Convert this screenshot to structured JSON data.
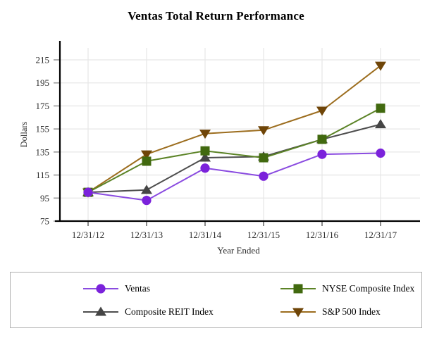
{
  "title": "Ventas Total Return Performance",
  "chart_data": {
    "type": "line",
    "title": "Ventas Total Return Performance",
    "xlabel": "Year Ended",
    "ylabel": "Dollars",
    "categories": [
      "12/31/12",
      "12/31/13",
      "12/31/14",
      "12/31/15",
      "12/31/16",
      "12/31/17"
    ],
    "yticks": [
      75,
      95,
      115,
      135,
      155,
      175,
      195,
      215
    ],
    "ylim": [
      75,
      225
    ],
    "grid": true,
    "legend_position": "bottom-box",
    "series": [
      {
        "name": "S&P 500 Index",
        "marker": "triangle-down",
        "line_color": "#9C6D1E",
        "marker_color": "#6F4508",
        "values": [
          100,
          133,
          151,
          154,
          171,
          210
        ]
      },
      {
        "name": "Composite REIT Index",
        "marker": "triangle-up",
        "line_color": "#4D4D4D",
        "marker_color": "#454545",
        "values": [
          100,
          102,
          130,
          131,
          146,
          159
        ]
      },
      {
        "name": "NYSE Composite Index",
        "marker": "square",
        "line_color": "#5B8326",
        "marker_color": "#41690F",
        "values": [
          100,
          127,
          136,
          130,
          146,
          173
        ]
      },
      {
        "name": "Ventas",
        "marker": "circle",
        "line_color": "#8A4BE0",
        "marker_color": "#7B22DB",
        "values": [
          100,
          93,
          121,
          114,
          133,
          134
        ]
      }
    ],
    "legend_order": [
      "Ventas",
      "NYSE Composite Index",
      "Composite REIT Index",
      "S&P 500 Index"
    ],
    "colors": {
      "axis": "#000000",
      "grid": "#e7e7e7",
      "tick": "#999999",
      "tick_label": "#2b2b2b"
    }
  }
}
